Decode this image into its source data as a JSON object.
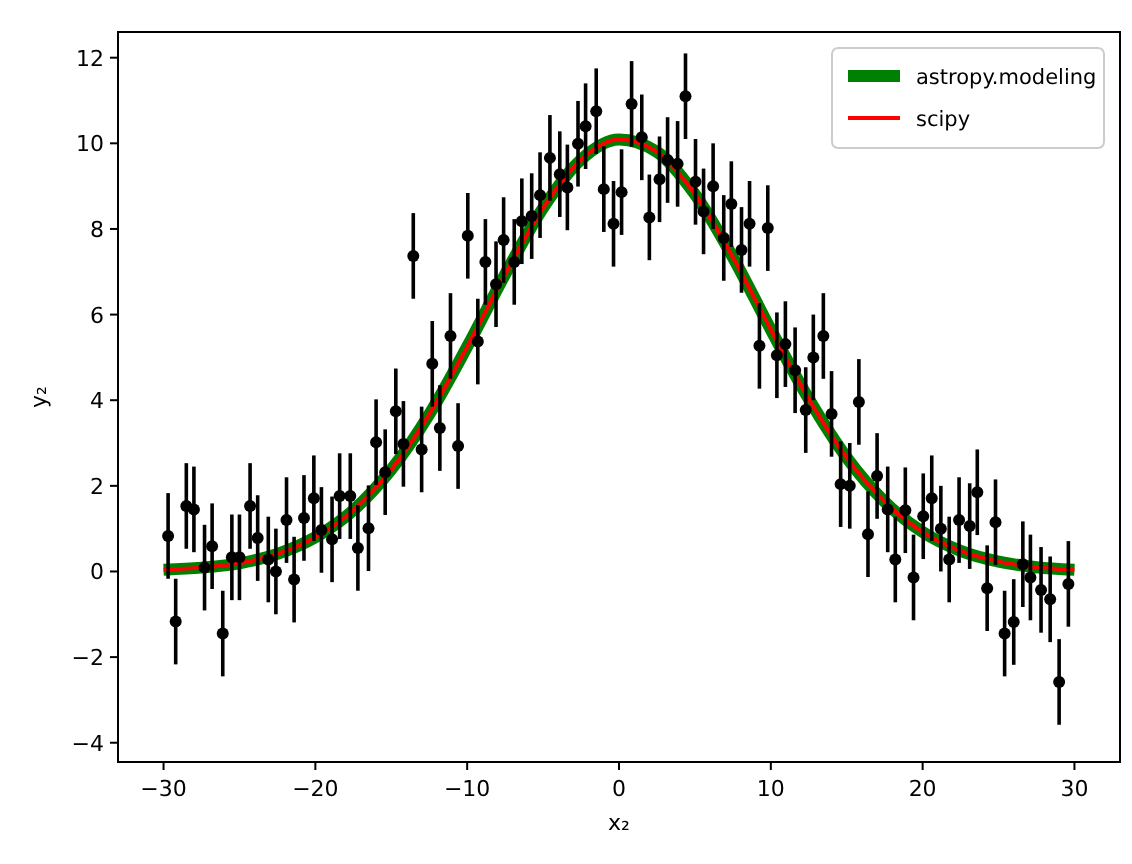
{
  "chart_data": {
    "type": "scatter",
    "xlabel": "x₂",
    "ylabel": "y₂",
    "xlim": [
      -33,
      33
    ],
    "ylim": [
      -4.45,
      12.6
    ],
    "xticks": [
      -30,
      -20,
      -10,
      0,
      10,
      20,
      30
    ],
    "yticks": [
      -4,
      -2,
      0,
      2,
      4,
      6,
      8,
      10,
      12
    ],
    "grid": false,
    "legend": "top right",
    "marker": "circle",
    "series": [
      {
        "color": "#000000",
        "x": [
          -29.7,
          -29.2,
          -28.5,
          -28.0,
          -27.3,
          -26.8,
          -26.1,
          -25.5,
          -25.0,
          -24.3,
          -23.8,
          -23.1,
          -22.6,
          -21.9,
          -21.4,
          -20.75,
          -20.1,
          -19.6,
          -18.9,
          -18.4,
          -17.7,
          -17.2,
          -16.5,
          -16.0,
          -15.4,
          -14.7,
          -14.2,
          -13.55,
          -13.0,
          -12.3,
          -11.8,
          -11.1,
          -10.6,
          -9.96,
          -9.3,
          -8.8,
          -8.1,
          -7.6,
          -6.9,
          -6.4,
          -5.75,
          -5.2,
          -4.55,
          -3.9,
          -3.4,
          -2.7,
          -2.2,
          -1.5,
          -1.0,
          -0.36,
          0.17,
          0.83,
          1.5,
          2.0,
          2.67,
          3.2,
          3.86,
          4.38,
          5.04,
          5.57,
          6.2,
          6.9,
          7.4,
          8.07,
          8.6,
          9.25,
          9.8,
          10.4,
          10.96,
          11.6,
          12.3,
          12.8,
          13.46,
          14.0,
          14.6,
          15.2,
          15.8,
          16.4,
          17.0,
          17.7,
          18.2,
          18.86,
          19.4,
          20.04,
          20.6,
          21.2,
          21.75,
          22.4,
          23.1,
          23.6,
          24.25,
          24.8,
          25.4,
          26.0,
          26.6,
          27.1,
          27.8,
          28.4,
          28.99,
          29.6
        ],
        "values": [
          0.83,
          -1.17,
          1.53,
          1.45,
          0.09,
          0.59,
          -1.45,
          0.33,
          0.33,
          1.53,
          0.78,
          0.28,
          0.0,
          1.2,
          -0.19,
          1.25,
          1.71,
          0.97,
          0.75,
          1.76,
          1.76,
          0.55,
          1.01,
          3.02,
          2.32,
          3.74,
          2.98,
          7.37,
          2.85,
          4.85,
          3.35,
          5.5,
          2.93,
          7.84,
          5.37,
          7.23,
          6.71,
          7.74,
          7.23,
          8.18,
          8.3,
          8.79,
          9.66,
          9.28,
          8.97,
          9.99,
          10.4,
          10.75,
          8.93,
          8.12,
          8.86,
          10.92,
          10.14,
          8.27,
          9.16,
          9.61,
          9.52,
          11.1,
          9.1,
          8.41,
          9.0,
          7.79,
          8.58,
          7.51,
          8.12,
          5.27,
          8.02,
          5.05,
          5.31,
          4.7,
          3.77,
          5.0,
          5.5,
          3.68,
          2.04,
          2.0,
          3.96,
          0.87,
          2.23,
          1.45,
          0.28,
          1.43,
          -0.14,
          1.29,
          1.71,
          1.0,
          0.28,
          1.2,
          1.06,
          1.85,
          -0.39,
          1.15,
          -1.45,
          -1.18,
          0.17,
          -0.14,
          -0.43,
          -0.65,
          -2.58,
          -0.29
        ],
        "errors": [
          1,
          1,
          1,
          1,
          1,
          1,
          1,
          1,
          1,
          1,
          1,
          1,
          1,
          1,
          1,
          1,
          1,
          1,
          1,
          1,
          1,
          1,
          1,
          1,
          1,
          1,
          1,
          1,
          1,
          1,
          1,
          1,
          1,
          1,
          1,
          1,
          1,
          1,
          1,
          1,
          1,
          1,
          1,
          1,
          1,
          1,
          1,
          1,
          1,
          1,
          1,
          1,
          1,
          1,
          1,
          1,
          1,
          1,
          1,
          1,
          1,
          1,
          1,
          1,
          1,
          1,
          1,
          1,
          1,
          1,
          1,
          1,
          1,
          1,
          1,
          1,
          1,
          1,
          1,
          1,
          1,
          1,
          1,
          1,
          1,
          1,
          1,
          1,
          1,
          1,
          1,
          1,
          1,
          1,
          1,
          1,
          1,
          1,
          1,
          1
        ]
      },
      {
        "type": "line",
        "name": "astropy.modeling",
        "color": "#008000",
        "marker": "none",
        "x": [
          -30,
          -27.5,
          -25,
          -22.5,
          -20,
          -17.5,
          -15,
          -12.5,
          -10,
          -7.5,
          -5,
          -2.5,
          0,
          2.5,
          5,
          7.5,
          10,
          12.5,
          15,
          17.5,
          20,
          22.5,
          25,
          27.5,
          30
        ],
        "values": [
          0.04,
          0.09,
          0.19,
          0.41,
          0.8,
          1.43,
          2.38,
          3.67,
          5.25,
          6.94,
          8.49,
          9.62,
          10.09,
          9.8,
          8.81,
          7.34,
          5.65,
          4.03,
          2.66,
          1.63,
          0.92,
          0.48,
          0.23,
          0.1,
          0.04
        ]
      },
      {
        "type": "line",
        "name": "scipy",
        "color": "#ff0000",
        "marker": "none",
        "x": [
          -30,
          -27.5,
          -25,
          -22.5,
          -20,
          -17.5,
          -15,
          -12.5,
          -10,
          -7.5,
          -5,
          -2.5,
          0,
          2.5,
          5,
          7.5,
          10,
          12.5,
          15,
          17.5,
          20,
          22.5,
          25,
          27.5,
          30
        ],
        "values": [
          0.04,
          0.09,
          0.19,
          0.41,
          0.8,
          1.43,
          2.38,
          3.67,
          5.25,
          6.94,
          8.49,
          9.62,
          10.09,
          9.8,
          8.81,
          7.34,
          5.65,
          4.03,
          2.66,
          1.63,
          0.92,
          0.48,
          0.23,
          0.1,
          0.04
        ]
      }
    ]
  }
}
